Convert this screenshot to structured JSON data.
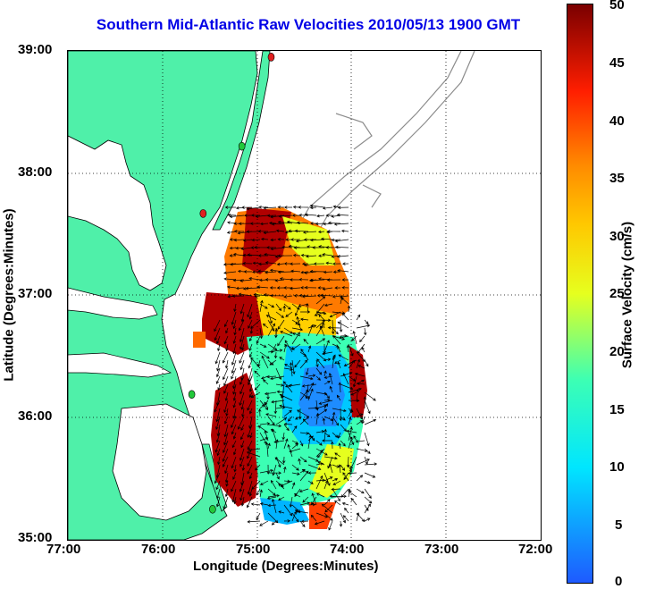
{
  "title": "Southern Mid-Atlantic Raw Velocities 2010/05/13 1900 GMT",
  "xlabel": "Longitude (Degrees:Minutes)",
  "ylabel": "Latitude (Degrees:Minutes)",
  "colorbar_label": "Surface Velocity (cm/s)",
  "x_ticks": [
    "77:00",
    "76:00",
    "75:00",
    "74:00",
    "73:00",
    "72:00"
  ],
  "y_ticks": [
    "39:00",
    "38:00",
    "37:00",
    "36:00",
    "35:00"
  ],
  "colorbar_ticks": [
    "50",
    "45",
    "40",
    "35",
    "30",
    "25",
    "20",
    "15",
    "10",
    "5",
    "0"
  ],
  "colors": {
    "land": "#4ff0a9",
    "title": "#0000e6",
    "station": "#22c83a",
    "station_alt": "#e02020",
    "bathymetry": "#8c8c8c"
  },
  "map": {
    "lon_range": [
      -77,
      -72
    ],
    "lat_range": [
      35,
      39
    ],
    "grid": true,
    "stations": [
      {
        "name": "station-1",
        "lon": -74.85,
        "lat": 38.95,
        "color_key": "station_alt"
      },
      {
        "name": "station-2",
        "lon": -75.16,
        "lat": 38.22,
        "color_key": "station"
      },
      {
        "name": "station-3",
        "lon": -75.57,
        "lat": 37.67,
        "color_key": "station_alt"
      },
      {
        "name": "station-4",
        "lon": -75.69,
        "lat": 36.19,
        "color_key": "station"
      },
      {
        "name": "station-5",
        "lon": -75.47,
        "lat": 35.25,
        "color_key": "station"
      }
    ]
  },
  "colorbar": {
    "min": 0,
    "max": 50,
    "unit": "cm/s"
  }
}
